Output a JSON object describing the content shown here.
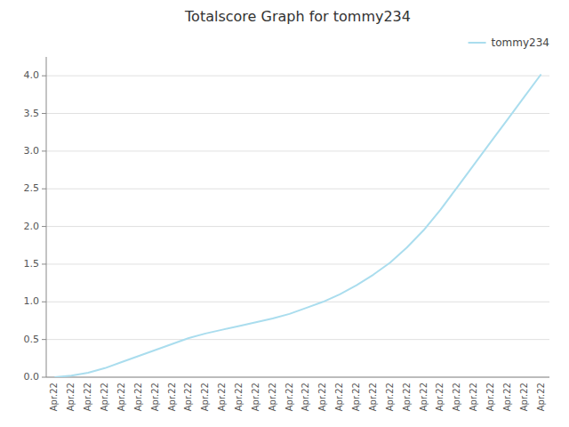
{
  "chart_data": {
    "type": "line",
    "title": "Totalscore Graph for tommy234",
    "categories": [
      "Apr.22",
      "Apr.22",
      "Apr.22",
      "Apr.22",
      "Apr.22",
      "Apr.22",
      "Apr.22",
      "Apr.22",
      "Apr.22",
      "Apr.22",
      "Apr.22",
      "Apr.22",
      "Apr.22",
      "Apr.22",
      "Apr.22",
      "Apr.22",
      "Apr.22",
      "Apr.22",
      "Apr.22",
      "Apr.22",
      "Apr.22",
      "Apr.22",
      "Apr.22",
      "Apr.22",
      "Apr.22",
      "Apr.22",
      "Apr.22",
      "Apr.22",
      "Apr.22",
      "Apr.22"
    ],
    "series": [
      {
        "name": "tommy234",
        "color": "#aaddee",
        "values": [
          0.0,
          0.02,
          0.06,
          0.12,
          0.2,
          0.28,
          0.36,
          0.44,
          0.52,
          0.58,
          0.63,
          0.68,
          0.73,
          0.78,
          0.84,
          0.92,
          1.0,
          1.1,
          1.22,
          1.36,
          1.52,
          1.72,
          1.95,
          2.22,
          2.52,
          2.82,
          3.12,
          3.42,
          3.72,
          4.02
        ]
      }
    ],
    "ylim": [
      0.0,
      4.25
    ],
    "yticks": [
      {
        "value": 0.0,
        "label": "0.0"
      },
      0.5,
      {
        "value": 1.0,
        "label": "1.0"
      },
      1.5,
      {
        "value": 2.0,
        "label": "2.0"
      },
      2.5,
      {
        "value": 3.0,
        "label": "3.0"
      },
      3.5,
      {
        "value": 4.0,
        "label": "4.0"
      }
    ],
    "grid": true,
    "legend": "upper right"
  }
}
